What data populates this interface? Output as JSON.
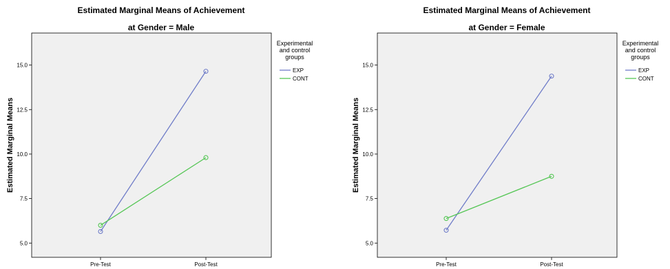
{
  "chart_data": [
    {
      "type": "line",
      "title": "Estimated Marginal Means of Achievement",
      "subtitle": "at Gender = Male",
      "xlabel": "",
      "ylabel": "Estimated Marginal Means",
      "categories": [
        "Pre-Test",
        "Post-Test"
      ],
      "ylim": [
        4.2,
        16.8
      ],
      "yticks": [
        "5.0",
        "7.5",
        "10.0",
        "12.5",
        "15.0"
      ],
      "legend_title": "Experimental and control groups",
      "legend_title_lines": [
        "Experimental",
        "and control",
        "groups"
      ],
      "legend_placement": "right",
      "grid": false,
      "series": [
        {
          "name": "EXP",
          "color": "#6f7cc8",
          "values": [
            5.65,
            14.65
          ]
        },
        {
          "name": "CONT",
          "color": "#55c655",
          "values": [
            6.0,
            9.8
          ]
        }
      ]
    },
    {
      "type": "line",
      "title": "Estimated Marginal Means of Achievement",
      "subtitle": "at Gender = Female",
      "xlabel": "",
      "ylabel": "Estimated Marginal Means",
      "categories": [
        "Pre-Test",
        "Post-Test"
      ],
      "ylim": [
        4.2,
        16.8
      ],
      "yticks": [
        "5.0",
        "7.5",
        "10.0",
        "12.5",
        "15.0"
      ],
      "legend_title": "Experimental and control groups",
      "legend_title_lines": [
        "Experimental",
        "and control",
        "groups"
      ],
      "legend_placement": "right",
      "grid": false,
      "series": [
        {
          "name": "EXP",
          "color": "#6f7cc8",
          "values": [
            5.72,
            14.38
          ]
        },
        {
          "name": "CONT",
          "color": "#55c655",
          "values": [
            6.38,
            8.75
          ]
        }
      ]
    }
  ]
}
